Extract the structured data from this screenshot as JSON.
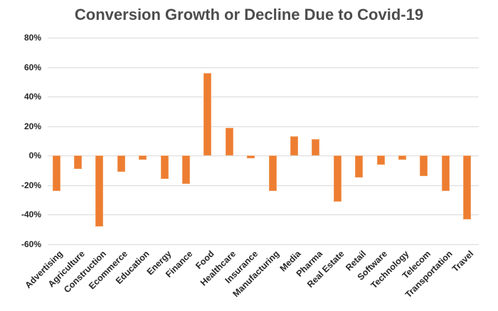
{
  "title": "Conversion Growth or Decline Due to Covid-19",
  "colors": {
    "bar_fill": "#ED7D31",
    "bar_border": "#F19B5E",
    "gridline": "#D9D9D9",
    "title_text": "#4D4D4D",
    "axis_text": "#262626",
    "background": "#FFFFFF"
  },
  "chart_data": {
    "type": "bar",
    "title": "Conversion Growth or Decline Due to Covid-19",
    "categories": [
      "Advertising",
      "Agriculture",
      "Construction",
      "Ecommerce",
      "Education",
      "Energy",
      "Finance",
      "Food",
      "Healthcare",
      "Insurance",
      "Manufacturing",
      "Media",
      "Pharma",
      "Real Estate",
      "Retail",
      "Software",
      "Technology",
      "Telecom",
      "Transportation",
      "Travel"
    ],
    "values": [
      -24,
      -9,
      -48,
      -11,
      -3,
      -16,
      -19,
      56,
      19,
      -2,
      -24,
      13,
      11,
      -31,
      -15,
      -6,
      -3,
      -14,
      -24,
      -43
    ],
    "xlabel": "",
    "ylabel": "",
    "ylim": [
      -60,
      80
    ],
    "ytick_step": 20,
    "ytick_labels": [
      "80%",
      "60%",
      "40%",
      "20%",
      "0%",
      "-20%",
      "-40%",
      "-60%"
    ],
    "ytick_values": [
      80,
      60,
      40,
      20,
      0,
      -20,
      -40,
      -60
    ],
    "grid": true,
    "legend": false,
    "bar_color": "#ED7D31"
  }
}
